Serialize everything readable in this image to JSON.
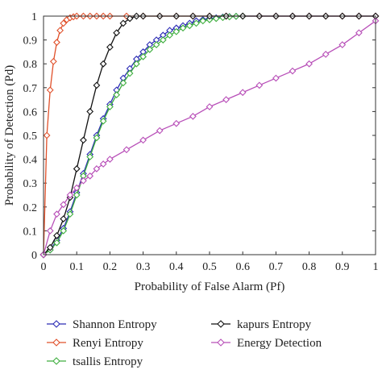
{
  "chart_data": {
    "type": "line",
    "title": "",
    "xlabel": "Probability of False Alarm (Pf)",
    "ylabel": "Probability of Detection (Pd)",
    "xlim": [
      0,
      1
    ],
    "ylim": [
      0,
      1
    ],
    "xticks": [
      "0",
      "0.1",
      "0.2",
      "0.3",
      "0.4",
      "0.5",
      "0.6",
      "0.7",
      "0.8",
      "0.9",
      "1"
    ],
    "yticks": [
      "0",
      "0.1",
      "0.2",
      "0.3",
      "0.4",
      "0.5",
      "0.6",
      "0.7",
      "0.8",
      "0.9",
      "1"
    ],
    "grid": false,
    "legend_position": "bottom",
    "marker": "diamond",
    "series": [
      {
        "name": "Shannon Entropy",
        "color": "#2b2bb5",
        "x": [
          0,
          0.02,
          0.04,
          0.06,
          0.08,
          0.1,
          0.12,
          0.14,
          0.16,
          0.18,
          0.2,
          0.22,
          0.24,
          0.26,
          0.28,
          0.3,
          0.32,
          0.34,
          0.36,
          0.38,
          0.4,
          0.42,
          0.44,
          0.46,
          0.48,
          0.5,
          0.52,
          0.54,
          0.56,
          0.58,
          0.6,
          0.65,
          0.7,
          0.75,
          0.8,
          0.85,
          0.9,
          0.95,
          1.0
        ],
        "y": [
          0,
          0.02,
          0.06,
          0.11,
          0.18,
          0.26,
          0.34,
          0.42,
          0.5,
          0.57,
          0.63,
          0.69,
          0.74,
          0.78,
          0.82,
          0.85,
          0.88,
          0.9,
          0.92,
          0.94,
          0.95,
          0.96,
          0.97,
          0.98,
          0.985,
          0.99,
          0.993,
          0.996,
          0.998,
          0.999,
          1.0,
          1.0,
          1.0,
          1.0,
          1.0,
          1.0,
          1.0,
          1.0,
          1.0
        ]
      },
      {
        "name": "Renyi Entropy",
        "color": "#e0502a",
        "x": [
          0,
          0.01,
          0.02,
          0.03,
          0.04,
          0.05,
          0.06,
          0.07,
          0.08,
          0.09,
          0.1,
          0.12,
          0.14,
          0.16,
          0.18,
          0.2,
          0.25,
          0.3,
          0.35,
          0.4,
          0.45,
          0.5,
          0.55,
          0.6,
          0.65,
          0.7,
          0.75,
          0.8,
          0.85,
          0.9,
          0.95,
          1.0
        ],
        "y": [
          0,
          0.5,
          0.69,
          0.81,
          0.89,
          0.94,
          0.97,
          0.985,
          0.993,
          0.997,
          1.0,
          1.0,
          1.0,
          1.0,
          1.0,
          1.0,
          1.0,
          1.0,
          1.0,
          1.0,
          1.0,
          1.0,
          1.0,
          1.0,
          1.0,
          1.0,
          1.0,
          1.0,
          1.0,
          1.0,
          1.0,
          1.0
        ]
      },
      {
        "name": "tsallis Entropy",
        "color": "#3fae3f",
        "x": [
          0,
          0.02,
          0.04,
          0.06,
          0.08,
          0.1,
          0.12,
          0.14,
          0.16,
          0.18,
          0.2,
          0.22,
          0.24,
          0.26,
          0.28,
          0.3,
          0.32,
          0.34,
          0.36,
          0.38,
          0.4,
          0.42,
          0.44,
          0.46,
          0.48,
          0.5,
          0.52,
          0.54,
          0.56,
          0.58,
          0.6
        ],
        "y": [
          0,
          0.02,
          0.05,
          0.1,
          0.17,
          0.25,
          0.33,
          0.41,
          0.49,
          0.56,
          0.62,
          0.67,
          0.72,
          0.76,
          0.8,
          0.83,
          0.86,
          0.88,
          0.9,
          0.92,
          0.935,
          0.95,
          0.96,
          0.97,
          0.98,
          0.985,
          0.99,
          0.994,
          0.997,
          0.999,
          1.0
        ]
      },
      {
        "name": "kapurs Entropy",
        "color": "#111111",
        "x": [
          0,
          0.02,
          0.04,
          0.06,
          0.08,
          0.1,
          0.12,
          0.14,
          0.16,
          0.18,
          0.2,
          0.22,
          0.24,
          0.26,
          0.28,
          0.3,
          0.35,
          0.4,
          0.45,
          0.5,
          0.55,
          0.6,
          0.65,
          0.7,
          0.75,
          0.8,
          0.85,
          0.9,
          0.95,
          1.0
        ],
        "y": [
          0,
          0.03,
          0.08,
          0.15,
          0.24,
          0.36,
          0.48,
          0.6,
          0.71,
          0.8,
          0.87,
          0.93,
          0.97,
          0.99,
          1.0,
          1.0,
          1.0,
          1.0,
          1.0,
          1.0,
          1.0,
          1.0,
          1.0,
          1.0,
          1.0,
          1.0,
          1.0,
          1.0,
          1.0,
          1.0
        ]
      },
      {
        "name": "Energy Detection",
        "color": "#b84fb8",
        "x": [
          0,
          0.02,
          0.04,
          0.06,
          0.08,
          0.1,
          0.12,
          0.14,
          0.16,
          0.18,
          0.2,
          0.25,
          0.3,
          0.35,
          0.4,
          0.45,
          0.5,
          0.55,
          0.6,
          0.65,
          0.7,
          0.75,
          0.8,
          0.85,
          0.9,
          0.95,
          1.0
        ],
        "y": [
          0,
          0.1,
          0.17,
          0.21,
          0.25,
          0.28,
          0.31,
          0.33,
          0.36,
          0.38,
          0.4,
          0.44,
          0.48,
          0.52,
          0.55,
          0.58,
          0.62,
          0.65,
          0.68,
          0.71,
          0.74,
          0.77,
          0.8,
          0.84,
          0.88,
          0.93,
          0.98
        ]
      }
    ]
  }
}
